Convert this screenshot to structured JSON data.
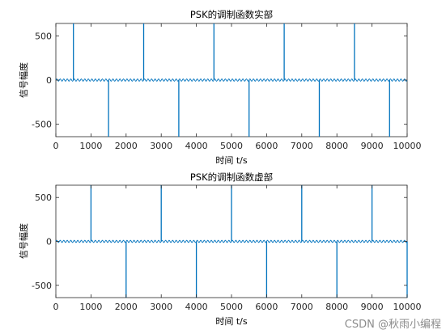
{
  "watermark": "CSDN @秋雨小编程",
  "chart_data": [
    {
      "type": "line",
      "title": "PSK的调制函数实部",
      "xlabel": "时间 t/s",
      "ylabel": "信号幅度",
      "xlim": [
        0,
        10000
      ],
      "ylim": [
        -640,
        640
      ],
      "xticks": [
        0,
        1000,
        2000,
        3000,
        4000,
        5000,
        6000,
        7000,
        8000,
        9000,
        10000
      ],
      "yticks": [
        -500,
        0,
        500
      ],
      "color": "#0072BD",
      "baseline_amplitude": 12,
      "baseline_period": 100,
      "spikes": [
        {
          "x": 500,
          "y": 640
        },
        {
          "x": 1500,
          "y": -640
        },
        {
          "x": 2500,
          "y": 640
        },
        {
          "x": 3500,
          "y": -640
        },
        {
          "x": 4500,
          "y": 640
        },
        {
          "x": 5500,
          "y": -640
        },
        {
          "x": 6500,
          "y": 640
        },
        {
          "x": 7500,
          "y": -640
        },
        {
          "x": 8500,
          "y": 640
        },
        {
          "x": 9500,
          "y": -640
        }
      ]
    },
    {
      "type": "line",
      "title": "PSK的调制函数虚部",
      "xlabel": "时间 t/s",
      "ylabel": "信号幅度",
      "xlim": [
        0,
        10000
      ],
      "ylim": [
        -640,
        640
      ],
      "xticks": [
        0,
        1000,
        2000,
        3000,
        4000,
        5000,
        6000,
        7000,
        8000,
        9000,
        10000
      ],
      "yticks": [
        -500,
        0,
        500
      ],
      "color": "#0072BD",
      "baseline_amplitude": 12,
      "baseline_period": 100,
      "spikes": [
        {
          "x": 1000,
          "y": 640
        },
        {
          "x": 2000,
          "y": -640
        },
        {
          "x": 3000,
          "y": 640
        },
        {
          "x": 4000,
          "y": -640
        },
        {
          "x": 5000,
          "y": 640
        },
        {
          "x": 6000,
          "y": -640
        },
        {
          "x": 7000,
          "y": 640
        },
        {
          "x": 8000,
          "y": -640
        },
        {
          "x": 9000,
          "y": 640
        },
        {
          "x": 10000,
          "y": -640
        }
      ]
    }
  ]
}
